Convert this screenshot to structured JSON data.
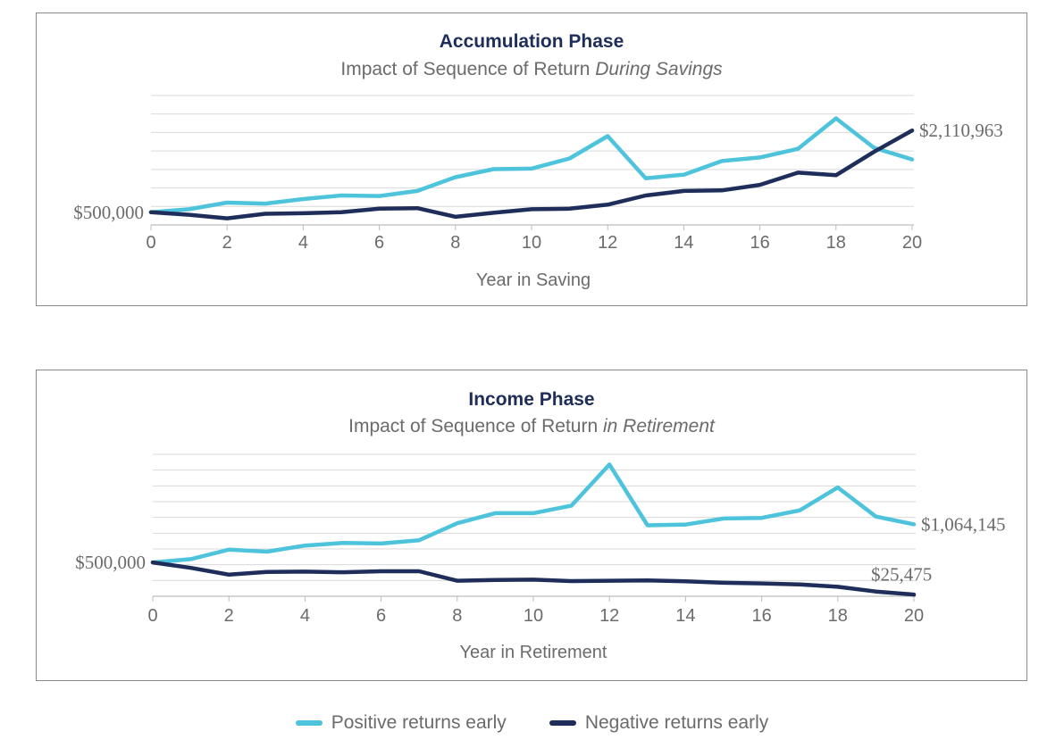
{
  "chart_data": [
    {
      "type": "line",
      "title": "Accumulation Phase",
      "subtitle_prefix": "Impact of Sequence of Return ",
      "subtitle_italic": "During Savings",
      "xlabel": "Year in Saving",
      "ylabel": "",
      "xlim": [
        0,
        20
      ],
      "xticks": [
        "0",
        "2",
        "4",
        "6",
        "8",
        "10",
        "12",
        "14",
        "16",
        "18",
        "20"
      ],
      "start_label": "$500,000",
      "end_label": "$2,110,963",
      "ylim": [
        250000,
        2800000
      ],
      "grid": true,
      "x": [
        0,
        1,
        2,
        3,
        4,
        5,
        6,
        7,
        8,
        9,
        10,
        11,
        12,
        13,
        14,
        15,
        16,
        17,
        18,
        19,
        20
      ],
      "series": [
        {
          "name": "Positive returns early",
          "values": [
            500000,
            560000,
            690000,
            670000,
            760000,
            830000,
            820000,
            920000,
            1190000,
            1350000,
            1360000,
            1560000,
            2000000,
            1170000,
            1240000,
            1510000,
            1580000,
            1750000,
            2350000,
            1770000,
            1540000
          ]
        },
        {
          "name": "Negative returns early",
          "values": [
            500000,
            450000,
            380000,
            470000,
            480000,
            500000,
            570000,
            580000,
            410000,
            490000,
            560000,
            570000,
            650000,
            830000,
            920000,
            930000,
            1040000,
            1280000,
            1230000,
            1690000,
            2110963
          ]
        }
      ]
    },
    {
      "type": "line",
      "title": "Income Phase",
      "subtitle_prefix": "Impact of Sequence of Return ",
      "subtitle_italic": "in Retirement",
      "xlabel": "Year in Retirement",
      "ylabel": "",
      "xlim": [
        0,
        20
      ],
      "xticks": [
        "0",
        "2",
        "4",
        "6",
        "8",
        "10",
        "12",
        "14",
        "16",
        "18",
        "20"
      ],
      "start_label": "$500,000",
      "end_label": "$1,064,145",
      "end_label_2": "$25,475",
      "ylim": [
        0,
        2100000
      ],
      "grid": true,
      "x": [
        0,
        1,
        2,
        3,
        4,
        5,
        6,
        7,
        8,
        9,
        10,
        11,
        12,
        13,
        14,
        15,
        16,
        17,
        18,
        19,
        20
      ],
      "series": [
        {
          "name": "Positive returns early",
          "values": [
            500000,
            550000,
            690000,
            660000,
            750000,
            790000,
            780000,
            830000,
            1080000,
            1230000,
            1230000,
            1340000,
            1950000,
            1050000,
            1060000,
            1150000,
            1160000,
            1270000,
            1610000,
            1180000,
            1064145
          ]
        },
        {
          "name": "Negative returns early",
          "values": [
            500000,
            420000,
            320000,
            360000,
            365000,
            355000,
            370000,
            370000,
            230000,
            240000,
            245000,
            225000,
            230000,
            235000,
            220000,
            200000,
            190000,
            175000,
            140000,
            70000,
            25475
          ]
        }
      ]
    }
  ],
  "legend": {
    "items": [
      {
        "label": "Positive returns early",
        "color": "#4ec3dc"
      },
      {
        "label": "Negative returns early",
        "color": "#1e2d5a"
      }
    ]
  },
  "colors": {
    "positive": "#4ec3dc",
    "negative": "#1e2d5a",
    "title": "#1e2d5a",
    "text": "#6b6b6b",
    "grid": "#d9d9d9",
    "axis": "#bdbdbd"
  }
}
